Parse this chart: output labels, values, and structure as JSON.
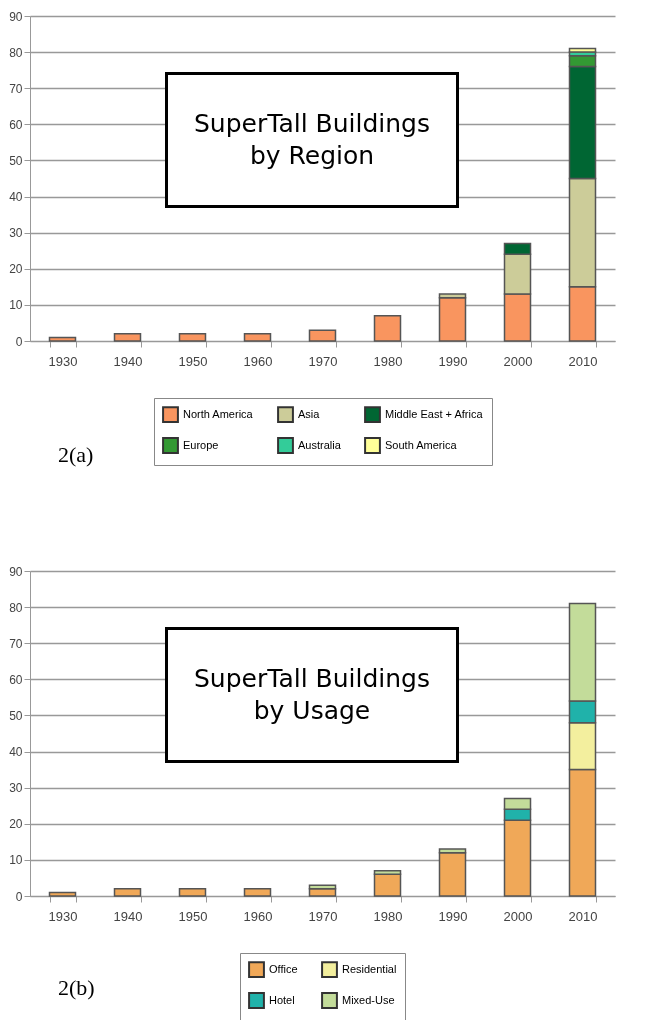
{
  "chart_data": [
    {
      "type": "bar",
      "title": "SuperTall Buildings by Region",
      "stacked": true,
      "grid": "y",
      "legend": "bottom",
      "annotations": [
        "2(a)"
      ],
      "categories": [
        "1930",
        "1940",
        "1950",
        "1960",
        "1970",
        "1980",
        "1990",
        "2000",
        "2010"
      ],
      "ylim": [
        0,
        90
      ],
      "yticks": [
        0,
        10,
        20,
        30,
        40,
        50,
        60,
        70,
        80,
        90
      ],
      "series": [
        {
          "name": "North America",
          "color": "#f9955f",
          "values": [
            1,
            2,
            2,
            2,
            3,
            7,
            12,
            13,
            15
          ]
        },
        {
          "name": "Asia",
          "color": "#cccc99",
          "values": [
            null,
            null,
            null,
            null,
            null,
            null,
            1,
            11,
            30
          ]
        },
        {
          "name": "Middle East + Africa",
          "color": "#006633",
          "values": [
            null,
            null,
            null,
            null,
            null,
            null,
            null,
            3,
            31
          ]
        },
        {
          "name": "Europe",
          "color": "#339933",
          "values": [
            null,
            null,
            null,
            null,
            null,
            null,
            null,
            null,
            3
          ]
        },
        {
          "name": "Australia",
          "color": "#33cc99",
          "values": [
            null,
            null,
            null,
            null,
            null,
            null,
            null,
            null,
            1
          ]
        },
        {
          "name": "South America",
          "color": "#ffff99",
          "values": [
            null,
            null,
            null,
            null,
            null,
            null,
            null,
            null,
            1
          ]
        }
      ]
    },
    {
      "type": "bar",
      "title": "SuperTall Buildings by Usage",
      "stacked": true,
      "grid": "y",
      "legend": "bottom",
      "annotations": [
        "2(b)"
      ],
      "categories": [
        "1930",
        "1940",
        "1950",
        "1960",
        "1970",
        "1980",
        "1990",
        "2000",
        "2010"
      ],
      "ylim": [
        0,
        90
      ],
      "yticks": [
        0,
        10,
        20,
        30,
        40,
        50,
        60,
        70,
        80,
        90
      ],
      "series": [
        {
          "name": "Office",
          "color": "#f0a858",
          "values": [
            1,
            2,
            2,
            2,
            2,
            6,
            12,
            21,
            35
          ]
        },
        {
          "name": "Residential",
          "color": "#f3ef9e",
          "values": [
            null,
            null,
            null,
            null,
            null,
            null,
            null,
            null,
            13
          ]
        },
        {
          "name": "Hotel",
          "color": "#20b2aa",
          "values": [
            null,
            null,
            null,
            null,
            null,
            null,
            null,
            3,
            6
          ]
        },
        {
          "name": "Mixed-Use",
          "color": "#c3dc9a",
          "values": [
            null,
            null,
            null,
            null,
            1,
            1,
            1,
            3,
            27
          ]
        }
      ]
    }
  ]
}
